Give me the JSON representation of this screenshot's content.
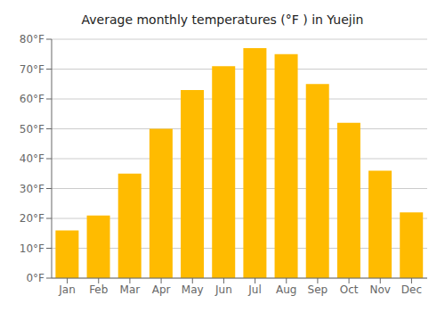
{
  "chart_data": {
    "type": "bar",
    "title": "Average monthly temperatures (°F ) in Yuejin",
    "categories": [
      "Jan",
      "Feb",
      "Mar",
      "Apr",
      "May",
      "Jun",
      "Jul",
      "Aug",
      "Sep",
      "Oct",
      "Nov",
      "Dec"
    ],
    "values": [
      16,
      21,
      35,
      50,
      63,
      71,
      77,
      75,
      65,
      52,
      36,
      22
    ],
    "color": "#FFBB00",
    "ylim": [
      0,
      80
    ],
    "yticks": [
      {
        "value": 0,
        "label": "0°F"
      },
      {
        "value": 10,
        "label": "10°F"
      },
      {
        "value": 20,
        "label": "20°F"
      },
      {
        "value": 30,
        "label": "30°F"
      },
      {
        "value": 40,
        "label": "40°F"
      },
      {
        "value": 50,
        "label": "50°F"
      },
      {
        "value": 60,
        "label": "60°F"
      },
      {
        "value": 70,
        "label": "70°F"
      },
      {
        "value": 80,
        "label": "80°F"
      }
    ],
    "grid": true
  }
}
